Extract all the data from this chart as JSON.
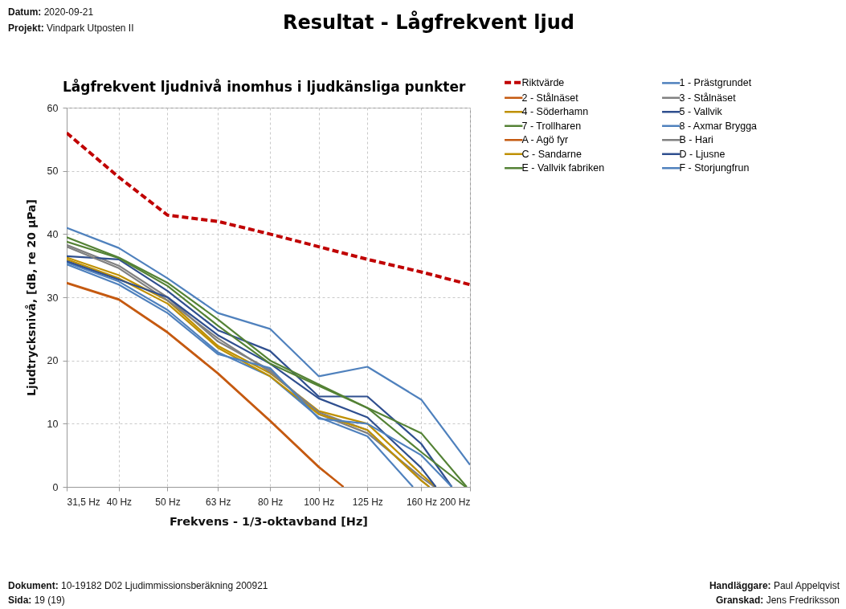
{
  "chart_data": {
    "type": "line",
    "title": "Resultat - Lågfrekvent ljud",
    "subtitle": "Lågfrekvent ljudnivå inomhus i ljudkänsliga punkter",
    "xlabel": "Frekvens - 1/3-oktavband [Hz]",
    "ylabel": "Ljudtrycksnivå, [dB, re 20 µPa]",
    "annotations": [
      "Datum: 2020-09-21",
      "Projekt: Vindpark Utposten II",
      "Dokument: 10-19182 D02 Ljudimmissionsberäkning 200921",
      "Sida: 19 (19)",
      "Handläggare: Paul Appelqvist",
      "Granskad: Jens Fredriksson"
    ],
    "x": [
      31.5,
      40,
      50,
      63,
      80,
      100,
      125,
      160,
      200
    ],
    "xlim": [
      31.5,
      200
    ],
    "log": "x",
    "xticks": [
      {
        "value": 31.5,
        "label": "31,5 Hz"
      },
      {
        "value": 40,
        "label": "40 Hz"
      },
      {
        "value": 50,
        "label": "50 Hz"
      },
      {
        "value": 63,
        "label": "63 Hz"
      },
      {
        "value": 80,
        "label": "80 Hz"
      },
      {
        "value": 100,
        "label": "100 Hz"
      },
      {
        "value": 125,
        "label": "125 Hz"
      },
      {
        "value": 160,
        "label": "160 Hz"
      },
      {
        "value": 200,
        "label": "200 Hz"
      }
    ],
    "ylim": [
      0,
      60
    ],
    "yticks": [
      0,
      10,
      20,
      30,
      40,
      50,
      60
    ],
    "grid": true,
    "legend": "top right",
    "line_style": "solid",
    "series": [
      {
        "name": "Riktvärde",
        "color": "#c00000",
        "line_style": "dashed",
        "values": [
          56,
          49,
          43,
          42,
          40,
          38,
          36,
          34,
          32
        ]
      },
      {
        "name": "1 - Prästgrundet",
        "color": "#4f81bd",
        "values": [
          41,
          37.8,
          33,
          27.5,
          25,
          17.5,
          19,
          13.8,
          3.5
        ]
      },
      {
        "name": "2 - Stålnäset",
        "color": "#c55a11",
        "x": [
          31.5,
          40,
          50,
          63,
          80,
          100,
          112
        ],
        "values": [
          32.3,
          29.7,
          24.5,
          18,
          10.5,
          3.2,
          0
        ]
      },
      {
        "name": "3 - Stålnäset",
        "color": "#808080",
        "x": [
          31.5,
          40,
          50,
          63,
          80,
          100,
          125,
          160,
          170
        ],
        "values": [
          38.3,
          35,
          30,
          23,
          18.5,
          11.5,
          8.5,
          1.5,
          0
        ]
      },
      {
        "name": "4 - Söderhamn",
        "color": "#bf9000",
        "x": [
          31.5,
          40,
          50,
          63,
          80,
          100,
          125,
          160,
          171
        ],
        "values": [
          36.3,
          33.5,
          29.5,
          22.3,
          18,
          12,
          10,
          2,
          0
        ]
      },
      {
        "name": "5 - Vallvik",
        "color": "#2f4f8f",
        "x": [
          31.5,
          40,
          50,
          63,
          80,
          100,
          125,
          160,
          184
        ],
        "values": [
          36.5,
          36,
          31,
          24.8,
          21.5,
          14.3,
          14.3,
          6.8,
          0
        ]
      },
      {
        "name": "7 - Trollharen",
        "color": "#548235",
        "x": [
          31.5,
          40,
          50,
          63,
          80,
          100,
          125,
          160,
          197
        ],
        "values": [
          39.5,
          36.3,
          32.3,
          26.5,
          20,
          16.2,
          12.5,
          8.5,
          0
        ]
      },
      {
        "name": "8 - Axmar Brygga",
        "color": "#4f81bd",
        "x": [
          31.5,
          40,
          50,
          63,
          80,
          100,
          125,
          154
        ],
        "values": [
          35.5,
          32.5,
          28,
          21.3,
          17.5,
          11,
          8,
          0
        ]
      },
      {
        "name": "A - Agö fyr",
        "color": "#c55a11",
        "x": [
          31.5,
          40,
          50,
          63,
          80,
          100,
          112
        ],
        "values": [
          32.2,
          29.6,
          24.4,
          17.9,
          10.4,
          3.1,
          0
        ]
      },
      {
        "name": "B - Hari",
        "color": "#808080",
        "x": [
          31.5,
          40,
          50,
          63,
          80,
          100,
          125,
          160,
          166
        ],
        "values": [
          38,
          34.6,
          29.5,
          23.5,
          18.2,
          11.8,
          9,
          1,
          0
        ]
      },
      {
        "name": "C - Sandarne",
        "color": "#bf9000",
        "x": [
          31.5,
          40,
          50,
          63,
          80,
          100,
          125,
          160,
          166
        ],
        "values": [
          36,
          33,
          29,
          22,
          17.5,
          11.5,
          9,
          1,
          0
        ]
      },
      {
        "name": "D - Ljusne",
        "color": "#2f4f8f",
        "x": [
          31.5,
          40,
          50,
          63,
          80,
          100,
          125,
          160,
          171
        ],
        "values": [
          35.7,
          32.8,
          30,
          24,
          19.5,
          14,
          11,
          3,
          0
        ]
      },
      {
        "name": "E - Vallvik fabriken",
        "color": "#548235",
        "x": [
          31.5,
          40,
          50,
          63,
          80,
          100,
          125,
          160,
          196
        ],
        "values": [
          38.8,
          36.2,
          31.8,
          25.5,
          19.5,
          16,
          12.5,
          5.5,
          0
        ]
      },
      {
        "name": "F - Storjungfrun",
        "color": "#4f81bd",
        "x": [
          31.5,
          40,
          50,
          63,
          80,
          100,
          125,
          160,
          184
        ],
        "values": [
          35.2,
          32,
          27.5,
          21,
          18.8,
          10.8,
          10,
          5,
          0
        ]
      }
    ]
  }
}
